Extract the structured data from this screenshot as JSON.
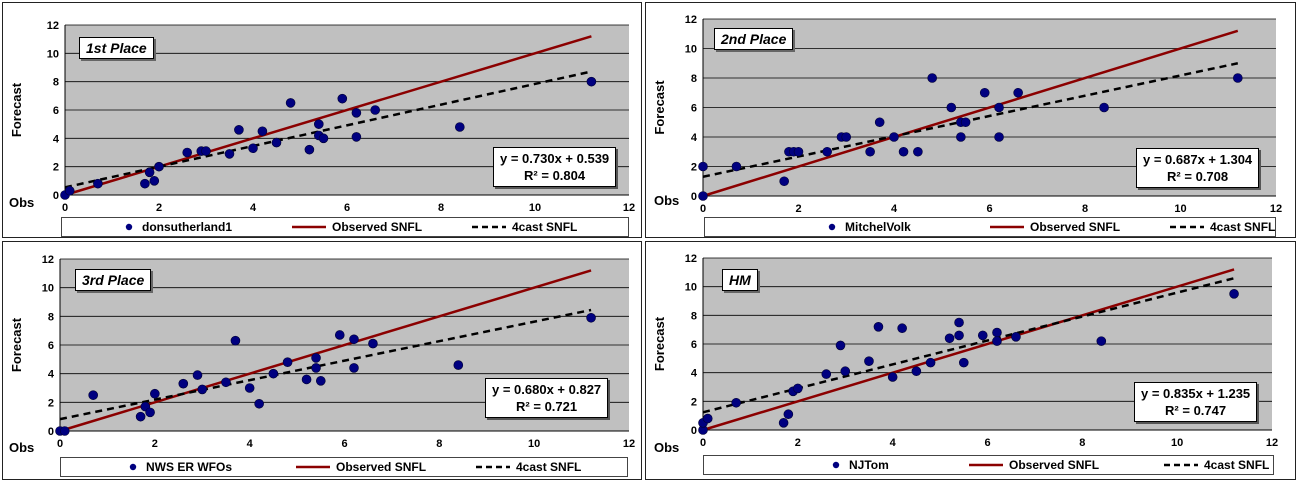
{
  "colors": {
    "plot_bg": "#c0c0c0",
    "point": "#000080",
    "observed_line": "#8b0000",
    "forecast_line": "#000000",
    "grid": "#000000"
  },
  "chart_data": [
    {
      "type": "scatter",
      "place_label": "1st Place",
      "xlabel": "Obs",
      "ylabel": "Forecast",
      "xlim": [
        0,
        12
      ],
      "ylim": [
        0,
        12
      ],
      "xticks": [
        0,
        2,
        4,
        6,
        8,
        10,
        12
      ],
      "yticks": [
        0,
        2,
        4,
        6,
        8,
        10,
        12
      ],
      "grid": "horizontal",
      "legend_position": "bottom",
      "equation": "y = 0.730x + 0.539",
      "r2": "R² = 0.804",
      "series": [
        {
          "name": "donsutherland1",
          "kind": "points",
          "x": [
            0,
            0.1,
            0.7,
            1.7,
            1.8,
            1.9,
            2.0,
            2.6,
            2.9,
            3.0,
            3.5,
            3.7,
            4.0,
            4.2,
            4.5,
            4.8,
            5.2,
            5.4,
            5.4,
            5.5,
            5.9,
            6.2,
            6.2,
            6.6,
            8.4,
            11.2
          ],
          "y": [
            0,
            0.3,
            0.8,
            0.8,
            1.6,
            1.0,
            2.0,
            3.0,
            3.1,
            3.1,
            2.9,
            4.6,
            3.3,
            4.5,
            3.7,
            6.5,
            3.2,
            4.2,
            5.0,
            4.0,
            6.8,
            5.8,
            4.1,
            6.0,
            4.8,
            8.0
          ]
        },
        {
          "name": "Observed SNFL",
          "kind": "line",
          "x": [
            0,
            11.2
          ],
          "y": [
            0,
            11.2
          ]
        },
        {
          "name": "4cast SNFL",
          "kind": "dashed",
          "x": [
            0,
            11.2
          ],
          "y": [
            0.539,
            8.715
          ]
        }
      ]
    },
    {
      "type": "scatter",
      "place_label": "2nd Place",
      "xlabel": "Obs",
      "ylabel": "Forecast",
      "xlim": [
        0,
        12
      ],
      "ylim": [
        0,
        12
      ],
      "xticks": [
        0,
        2,
        4,
        6,
        8,
        10,
        12
      ],
      "yticks": [
        0,
        2,
        4,
        6,
        8,
        10,
        12
      ],
      "grid": "horizontal",
      "legend_position": "bottom",
      "equation": "y = 0.687x + 1.304",
      "r2": "R² = 0.708",
      "series": [
        {
          "name": "MitchelVolk",
          "kind": "points",
          "x": [
            0,
            0,
            0.7,
            1.7,
            1.8,
            1.9,
            2.0,
            2.6,
            2.9,
            3.0,
            3.5,
            3.7,
            4.0,
            4.2,
            4.5,
            4.8,
            5.2,
            5.4,
            5.4,
            5.5,
            5.9,
            6.2,
            6.2,
            6.6,
            8.4,
            11.2
          ],
          "y": [
            0,
            2.0,
            2.0,
            1.0,
            3.0,
            3.0,
            3.0,
            3.0,
            4.0,
            4.0,
            3.0,
            5.0,
            4.0,
            3.0,
            3.0,
            8.0,
            6.0,
            5.0,
            4.0,
            5.0,
            7.0,
            6.0,
            4.0,
            7.0,
            6.0,
            8.0
          ]
        },
        {
          "name": "Observed SNFL",
          "kind": "line",
          "x": [
            0,
            11.2
          ],
          "y": [
            0,
            11.2
          ]
        },
        {
          "name": "4cast SNFL",
          "kind": "dashed",
          "x": [
            0,
            11.2
          ],
          "y": [
            1.304,
            8.998
          ]
        }
      ]
    },
    {
      "type": "scatter",
      "place_label": "3rd Place",
      "xlabel": "Obs",
      "ylabel": "Forecast",
      "xlim": [
        0,
        12
      ],
      "ylim": [
        0,
        12
      ],
      "xticks": [
        0,
        2,
        4,
        6,
        8,
        10,
        12
      ],
      "yticks": [
        0,
        2,
        4,
        6,
        8,
        10,
        12
      ],
      "grid": "horizontal",
      "legend_position": "bottom",
      "equation": "y = 0.680x + 0.827",
      "r2": "R² = 0.721",
      "series": [
        {
          "name": "NWS ER WFOs",
          "kind": "points",
          "x": [
            0,
            0.1,
            0.7,
            1.7,
            1.8,
            1.9,
            2.0,
            2.6,
            2.9,
            3.0,
            3.5,
            3.7,
            4.0,
            4.2,
            4.5,
            4.8,
            5.2,
            5.4,
            5.4,
            5.5,
            5.9,
            6.2,
            6.2,
            6.6,
            8.4,
            11.2
          ],
          "y": [
            0,
            0,
            2.5,
            1.0,
            1.7,
            1.3,
            2.6,
            3.3,
            3.9,
            2.9,
            3.4,
            6.3,
            3.0,
            1.9,
            4.0,
            4.8,
            3.6,
            4.4,
            5.1,
            3.5,
            6.7,
            6.4,
            4.4,
            6.1,
            4.6,
            7.9
          ]
        },
        {
          "name": "Observed SNFL",
          "kind": "line",
          "x": [
            0,
            11.2
          ],
          "y": [
            0,
            11.2
          ]
        },
        {
          "name": "4cast SNFL",
          "kind": "dashed",
          "x": [
            0,
            11.2
          ],
          "y": [
            0.827,
            8.443
          ]
        }
      ]
    },
    {
      "type": "scatter",
      "place_label": "HM",
      "xlabel": "Obs",
      "ylabel": "Forecast",
      "xlim": [
        0,
        12
      ],
      "ylim": [
        0,
        12
      ],
      "xticks": [
        0,
        2,
        4,
        6,
        8,
        10,
        12
      ],
      "yticks": [
        0,
        2,
        4,
        6,
        8,
        10,
        12
      ],
      "grid": "horizontal",
      "legend_position": "bottom",
      "equation": "y = 0.835x + 1.235",
      "r2": "R² = 0.747",
      "series": [
        {
          "name": "NJTom",
          "kind": "points",
          "x": [
            0,
            0,
            0.1,
            0.7,
            1.7,
            1.8,
            1.9,
            2.0,
            2.6,
            2.9,
            3.0,
            3.5,
            3.7,
            4.0,
            4.2,
            4.5,
            4.8,
            5.2,
            5.4,
            5.4,
            5.5,
            5.9,
            6.2,
            6.2,
            6.6,
            8.4,
            11.2
          ],
          "y": [
            0,
            0.5,
            0.8,
            1.9,
            0.5,
            1.1,
            2.7,
            2.9,
            3.9,
            5.9,
            4.1,
            4.8,
            7.2,
            3.7,
            7.1,
            4.1,
            4.7,
            6.4,
            6.6,
            7.5,
            4.7,
            6.6,
            6.8,
            6.2,
            6.5,
            6.2,
            9.5
          ]
        },
        {
          "name": "Observed SNFL",
          "kind": "line",
          "x": [
            0,
            11.2
          ],
          "y": [
            0,
            11.2
          ]
        },
        {
          "name": "4cast SNFL",
          "kind": "dashed",
          "x": [
            0,
            11.2
          ],
          "y": [
            1.235,
            10.587
          ]
        }
      ]
    }
  ]
}
